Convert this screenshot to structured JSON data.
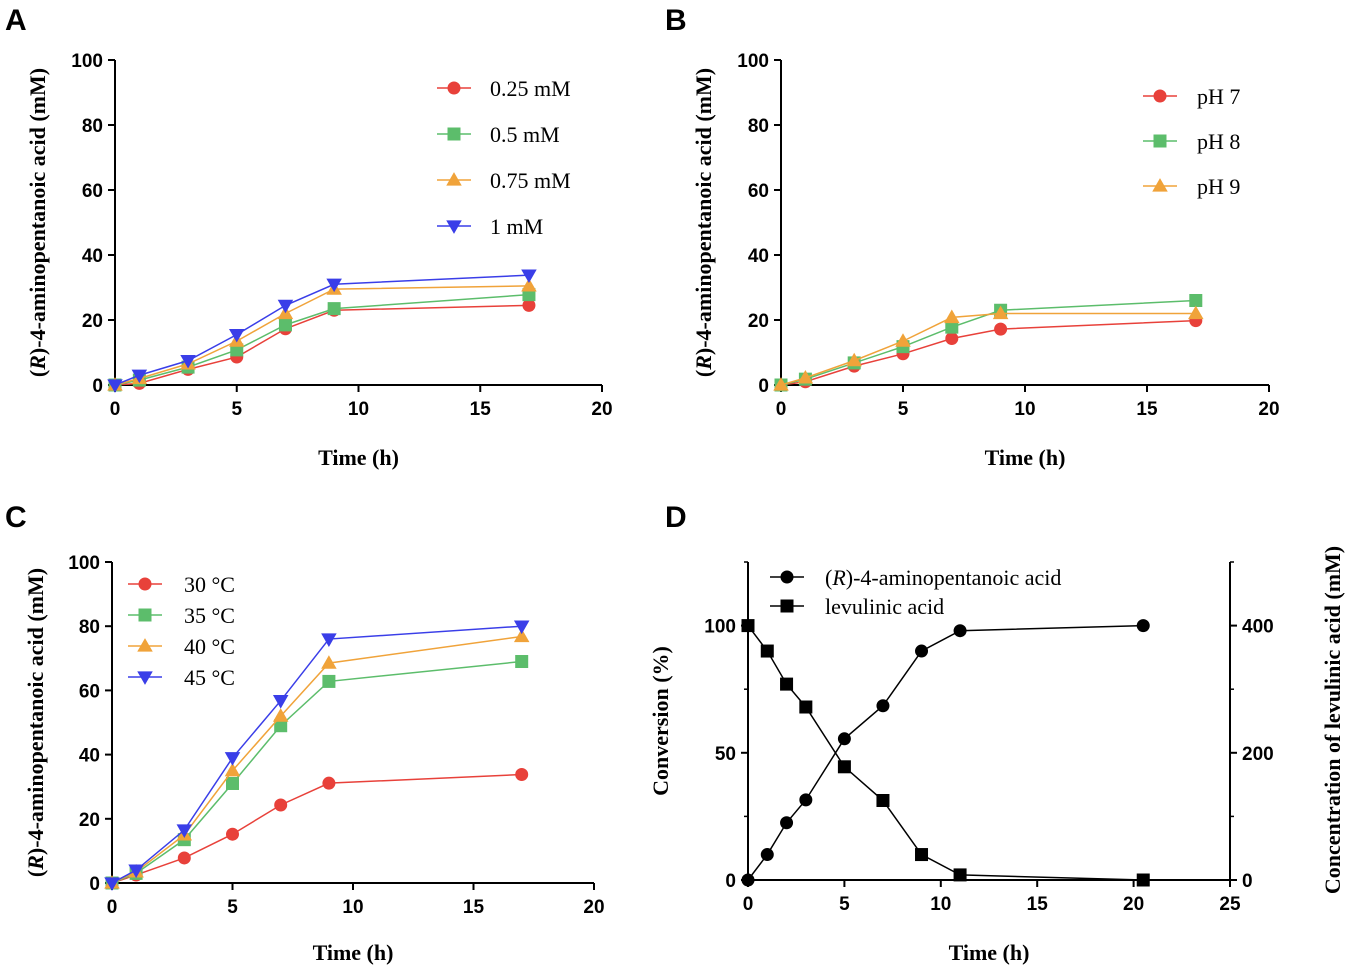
{
  "chart_data": [
    {
      "type": "line",
      "panel": "A",
      "xlabel": "Time (h)",
      "ylabel_prefix": "(",
      "ylabel_italic": "R",
      "ylabel_suffix": ")-4-aminopentanoic acid (mM)",
      "xlim": [
        0,
        20
      ],
      "ylim": [
        0,
        100
      ],
      "xticks": [
        0,
        5,
        10,
        15,
        20
      ],
      "yticks": [
        0,
        20,
        40,
        60,
        80,
        100
      ],
      "legend_position": "top-right",
      "series": [
        {
          "name": "0.25 mM",
          "color": "#e8413a",
          "marker": "circle",
          "x": [
            0,
            1,
            3,
            5,
            7,
            9,
            17
          ],
          "y": [
            0,
            0.5,
            4.8,
            8.6,
            17.3,
            23.0,
            24.5
          ]
        },
        {
          "name": "0.5 mM",
          "color": "#5cbd6b",
          "marker": "square",
          "x": [
            0,
            1,
            3,
            5,
            7,
            9,
            17
          ],
          "y": [
            0,
            1.5,
            5.5,
            10.8,
            18.5,
            23.5,
            27.8
          ]
        },
        {
          "name": "0.75 mM",
          "color": "#f0a33a",
          "marker": "triangle-up",
          "x": [
            0,
            1,
            3,
            5,
            7,
            9,
            17
          ],
          "y": [
            0,
            2.0,
            6.5,
            13.5,
            22.0,
            29.5,
            30.5
          ]
        },
        {
          "name": "1 mM",
          "color": "#3a3ee8",
          "marker": "triangle-down",
          "x": [
            0,
            1,
            3,
            5,
            7,
            9,
            17
          ],
          "y": [
            0,
            3.0,
            7.5,
            15.5,
            24.5,
            31.0,
            33.8
          ]
        }
      ]
    },
    {
      "type": "line",
      "panel": "B",
      "xlabel": "Time (h)",
      "ylabel_prefix": "(",
      "ylabel_italic": "R",
      "ylabel_suffix": ")-4-aminopentanoic acid (mM)",
      "xlim": [
        0,
        20
      ],
      "ylim": [
        0,
        100
      ],
      "xticks": [
        0,
        5,
        10,
        15,
        20
      ],
      "yticks": [
        0,
        20,
        40,
        60,
        80,
        100
      ],
      "legend_position": "top-right",
      "series": [
        {
          "name": "pH 7",
          "color": "#e8413a",
          "marker": "circle",
          "x": [
            0,
            1,
            3,
            5,
            7,
            9,
            17
          ],
          "y": [
            0,
            1.0,
            5.8,
            9.6,
            14.3,
            17.2,
            19.8
          ]
        },
        {
          "name": "pH 8",
          "color": "#5cbd6b",
          "marker": "square",
          "x": [
            0,
            1,
            3,
            5,
            7,
            9,
            17
          ],
          "y": [
            0,
            1.8,
            6.8,
            11.8,
            17.8,
            23.0,
            26.0
          ]
        },
        {
          "name": "pH 9",
          "color": "#f0a33a",
          "marker": "triangle-up",
          "x": [
            0,
            1,
            3,
            5,
            7,
            9,
            17
          ],
          "y": [
            0,
            2.2,
            7.5,
            13.5,
            20.8,
            22.0,
            22.0
          ]
        }
      ]
    },
    {
      "type": "line",
      "panel": "C",
      "xlabel": "Time (h)",
      "ylabel_prefix": "(",
      "ylabel_italic": "R",
      "ylabel_suffix": ")-4-aminopentanoic acid (mM)",
      "xlim": [
        0,
        20
      ],
      "ylim": [
        0,
        100
      ],
      "xticks": [
        0,
        5,
        10,
        15,
        20
      ],
      "yticks": [
        0,
        20,
        40,
        60,
        80,
        100
      ],
      "legend_position": "top-left",
      "series": [
        {
          "name": "30 °C",
          "color": "#e8413a",
          "marker": "circle",
          "x": [
            0,
            1,
            3,
            5,
            7,
            9,
            17
          ],
          "y": [
            0,
            2.5,
            7.8,
            15.2,
            24.3,
            31.1,
            33.8
          ]
        },
        {
          "name": "35 °C",
          "color": "#5cbd6b",
          "marker": "square",
          "x": [
            0,
            1,
            3,
            5,
            7,
            9,
            17
          ],
          "y": [
            0,
            3.0,
            13.5,
            31.0,
            49.0,
            62.8,
            69.0
          ]
        },
        {
          "name": "40 °C",
          "color": "#f0a33a",
          "marker": "triangle-up",
          "x": [
            0,
            1,
            3,
            5,
            7,
            9,
            17
          ],
          "y": [
            0,
            3.5,
            15.0,
            35.0,
            52.0,
            68.5,
            76.8
          ]
        },
        {
          "name": "45 °C",
          "color": "#3a3ee8",
          "marker": "triangle-down",
          "x": [
            0,
            1,
            3,
            5,
            7,
            9,
            17
          ],
          "y": [
            0,
            4.0,
            16.5,
            39.0,
            56.8,
            76.0,
            80.0
          ]
        }
      ]
    },
    {
      "type": "line",
      "panel": "D",
      "xlabel": "Time (h)",
      "ylabel": "Conversion (%)",
      "y2label": "Concentration of levulinic acid (mM)",
      "xlim": [
        0,
        25
      ],
      "ylim": [
        0,
        125
      ],
      "y2lim": [
        0,
        500
      ],
      "xticks": [
        0,
        5,
        10,
        15,
        20,
        25
      ],
      "yticks": [
        0,
        50,
        100
      ],
      "y2ticks": [
        0,
        200,
        400
      ],
      "legend_position": "top",
      "series": [
        {
          "name_prefix": "(",
          "name_italic": "R",
          "name_suffix": ")-4-aminopentanoic acid",
          "color": "#000000",
          "marker": "circle",
          "axis": "left",
          "x": [
            0,
            1,
            2,
            3,
            5,
            7,
            9,
            11,
            20.5
          ],
          "y": [
            0,
            10,
            22.5,
            31.5,
            55.5,
            68.5,
            90,
            98,
            100
          ]
        },
        {
          "name": "levulinic acid",
          "color": "#000000",
          "marker": "square",
          "axis": "right",
          "x": [
            0,
            1,
            2,
            3,
            5,
            7,
            9,
            11,
            20.5
          ],
          "y": [
            400,
            360,
            308,
            272,
            178,
            125,
            40,
            8,
            0
          ]
        }
      ]
    }
  ]
}
